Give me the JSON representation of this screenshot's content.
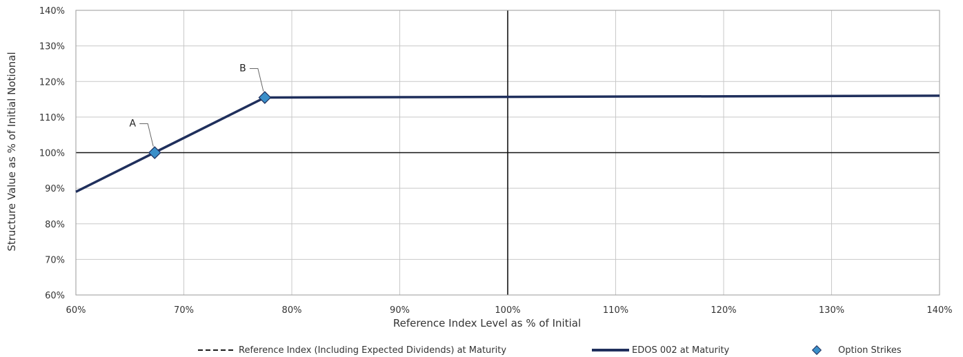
{
  "chart_data": {
    "type": "line",
    "title": "",
    "xlabel": "Reference Index Level as % of Initial",
    "ylabel": "Structure Value as % of Initial Notional",
    "xlim": [
      60,
      140
    ],
    "ylim": [
      60,
      140
    ],
    "x_ticks": [
      60,
      70,
      80,
      90,
      100,
      110,
      120,
      130,
      140
    ],
    "y_ticks": [
      60,
      70,
      80,
      90,
      100,
      110,
      120,
      130,
      140
    ],
    "x_tick_labels": [
      "60%",
      "70%",
      "80%",
      "90%",
      "100%",
      "110%",
      "120%",
      "130%",
      "140%"
    ],
    "y_tick_labels": [
      "60%",
      "70%",
      "80%",
      "90%",
      "100%",
      "110%",
      "120%",
      "130%",
      "140%"
    ],
    "grid": true,
    "reference_lines": {
      "x": 100,
      "y": 100
    },
    "series": [
      {
        "name": "Reference Index (Including Expected Dividends) at Maturity",
        "style": "dashed",
        "color": "#1a1a1a",
        "x": [],
        "y": []
      },
      {
        "name": "EDOS 002 at Maturity",
        "style": "solid",
        "color": "#1f2f5c",
        "x": [
          60,
          77.5,
          140
        ],
        "y": [
          89,
          115.5,
          116
        ]
      },
      {
        "name": "Option Strikes",
        "style": "marker",
        "color": "#3a8fc9",
        "x": [
          67.3,
          77.5
        ],
        "y": [
          100,
          115.5
        ],
        "labels": [
          "A",
          "B"
        ]
      }
    ],
    "legend_position": "bottom"
  }
}
